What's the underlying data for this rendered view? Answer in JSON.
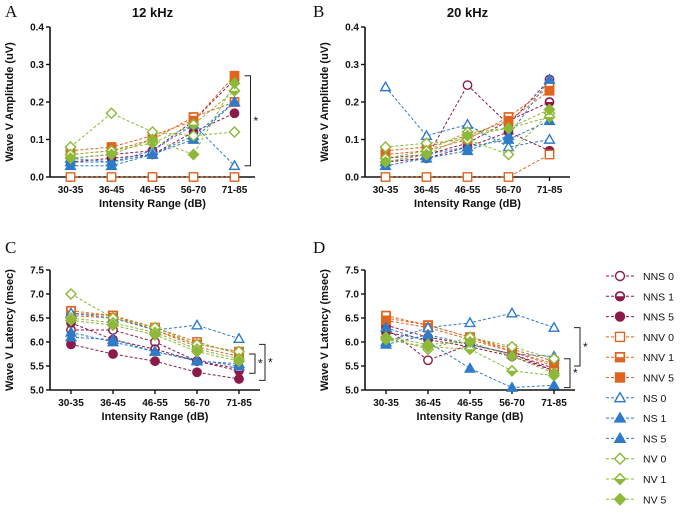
{
  "figure": {
    "x_categories": [
      "30-35",
      "36-45",
      "46-55",
      "56-70",
      "71-85"
    ],
    "x_axis_label": "Intensity Range (dB)",
    "amplitude_axis_label": "Wave V Amplitude (uV)",
    "latency_axis_label": "Wave V Latency (msec)",
    "significance_marker": "*"
  },
  "legend": [
    {
      "label": "NNS 0",
      "color": "#8B1A4A",
      "marker": "circle",
      "fill": "open"
    },
    {
      "label": "NNS 1",
      "color": "#8B1A4A",
      "marker": "circle",
      "fill": "half"
    },
    {
      "label": "NNS 5",
      "color": "#8B1A4A",
      "marker": "circle",
      "fill": "filled"
    },
    {
      "label": "NNV 0",
      "color": "#E0651E",
      "marker": "square",
      "fill": "open"
    },
    {
      "label": "NNV 1",
      "color": "#E0651E",
      "marker": "square",
      "fill": "half"
    },
    {
      "label": "NNV 5",
      "color": "#E0651E",
      "marker": "square",
      "fill": "filled"
    },
    {
      "label": "NS 0",
      "color": "#2F7BC8",
      "marker": "triangle",
      "fill": "open"
    },
    {
      "label": "NS 1",
      "color": "#2F7BC8",
      "marker": "triangle",
      "fill": "half"
    },
    {
      "label": "NS 5",
      "color": "#2F7BC8",
      "marker": "triangle",
      "fill": "filled"
    },
    {
      "label": "NV 0",
      "color": "#8DB838",
      "marker": "diamond",
      "fill": "open"
    },
    {
      "label": "NV 1",
      "color": "#8DB838",
      "marker": "diamond",
      "fill": "half"
    },
    {
      "label": "NV 5",
      "color": "#8DB838",
      "marker": "diamond",
      "fill": "filled"
    }
  ],
  "chart_data": [
    {
      "panel": "A",
      "title": "12 kHz",
      "type": "line",
      "categories": [
        "30-35",
        "36-45",
        "46-55",
        "56-70",
        "71-85"
      ],
      "xlabel": "Intensity Range (dB)",
      "ylabel": "Wave V Amplitude (uV)",
      "ylim": [
        0,
        0.4
      ],
      "yticks": [
        "0.0",
        "0.1",
        "0.2",
        "0.3",
        "0.4"
      ],
      "ytick_values": [
        0,
        0.1,
        0.2,
        0.3,
        0.4
      ],
      "series": [
        {
          "name": "NNS 0",
          "values": [
            0.0,
            0.0,
            0.0,
            0.0,
            0.0
          ]
        },
        {
          "name": "NNS 1",
          "values": [
            0.05,
            0.06,
            0.07,
            0.15,
            0.26
          ]
        },
        {
          "name": "NNS 5",
          "values": [
            0.04,
            0.05,
            0.06,
            0.12,
            0.17
          ]
        },
        {
          "name": "NNV 0",
          "values": [
            0.0,
            0.0,
            0.0,
            0.0,
            0.0
          ]
        },
        {
          "name": "NNV 1",
          "values": [
            0.06,
            0.07,
            0.1,
            0.16,
            0.2
          ]
        },
        {
          "name": "NNV 5",
          "values": [
            0.07,
            0.08,
            0.11,
            0.15,
            0.27
          ]
        },
        {
          "name": "NS 0",
          "values": [
            0.05,
            0.04,
            0.07,
            0.14,
            0.03
          ]
        },
        {
          "name": "NS 1",
          "values": [
            0.04,
            0.04,
            0.06,
            0.11,
            0.2
          ]
        },
        {
          "name": "NS 5",
          "values": [
            0.03,
            0.03,
            0.06,
            0.1,
            0.2
          ]
        },
        {
          "name": "NV 0",
          "values": [
            0.08,
            0.17,
            0.12,
            0.11,
            0.12
          ]
        },
        {
          "name": "NV 1",
          "values": [
            0.06,
            0.07,
            0.09,
            0.14,
            0.23
          ]
        },
        {
          "name": "NV 5",
          "values": [
            0.05,
            0.06,
            0.1,
            0.06,
            0.25
          ]
        }
      ],
      "annotations": [
        {
          "text": "*",
          "from_category": "71-85",
          "y_range": [
            0.03,
            0.27
          ]
        }
      ]
    },
    {
      "panel": "B",
      "title": "20 kHz",
      "type": "line",
      "categories": [
        "30-35",
        "36-45",
        "46-55",
        "56-70",
        "71-85"
      ],
      "xlabel": "Intensity Range (dB)",
      "ylabel": "Wave V Amplitude (uV)",
      "ylim": [
        0,
        0.4
      ],
      "yticks": [
        "0.0",
        "0.1",
        "0.2",
        "0.3",
        "0.4"
      ],
      "ytick_values": [
        0,
        0.1,
        0.2,
        0.3,
        0.4
      ],
      "series": [
        {
          "name": "NNS 0",
          "values": [
            0.04,
            0.05,
            0.245,
            0.14,
            0.26
          ]
        },
        {
          "name": "NNS 1",
          "values": [
            0.05,
            0.06,
            0.09,
            0.15,
            0.2
          ]
        },
        {
          "name": "NNS 5",
          "values": [
            0.04,
            0.05,
            0.08,
            0.12,
            0.07
          ]
        },
        {
          "name": "NNV 0",
          "values": [
            0.0,
            0.0,
            0.0,
            0.0,
            0.06
          ]
        },
        {
          "name": "NNV 1",
          "values": [
            0.06,
            0.07,
            0.1,
            0.16,
            0.24
          ]
        },
        {
          "name": "NNV 5",
          "values": [
            0.07,
            0.08,
            0.11,
            0.15,
            0.23
          ]
        },
        {
          "name": "NS 0",
          "values": [
            0.24,
            0.11,
            0.14,
            0.08,
            0.1
          ]
        },
        {
          "name": "NS 1",
          "values": [
            0.04,
            0.06,
            0.08,
            0.1,
            0.15
          ]
        },
        {
          "name": "NS 5",
          "values": [
            0.03,
            0.05,
            0.07,
            0.11,
            0.26
          ]
        },
        {
          "name": "NV 0",
          "values": [
            0.08,
            0.09,
            0.1,
            0.06,
            0.17
          ]
        },
        {
          "name": "NV 1",
          "values": [
            0.05,
            0.07,
            0.12,
            0.13,
            0.16
          ]
        },
        {
          "name": "NV 5",
          "values": [
            0.04,
            0.06,
            0.11,
            0.13,
            0.18
          ]
        }
      ],
      "annotations": []
    },
    {
      "panel": "C",
      "title": "",
      "type": "line",
      "categories": [
        "30-35",
        "36-45",
        "46-55",
        "56-70",
        "71-85"
      ],
      "xlabel": "Intensity Range (dB)",
      "ylabel": "Wave V Latency (msec)",
      "ylim": [
        5.0,
        7.5
      ],
      "yticks": [
        "5.0",
        "5.5",
        "6.0",
        "6.5",
        "7.0",
        "7.5"
      ],
      "ytick_values": [
        5.0,
        5.5,
        6.0,
        6.5,
        7.0,
        7.5
      ],
      "series": [
        {
          "name": "NNS 0",
          "values": [
            6.25,
            6.25,
            6.0,
            5.6,
            5.45
          ]
        },
        {
          "name": "NNS 1",
          "values": [
            6.4,
            6.05,
            5.85,
            5.6,
            5.4
          ]
        },
        {
          "name": "NNS 5",
          "values": [
            5.95,
            5.75,
            5.6,
            5.37,
            5.23
          ]
        },
        {
          "name": "NNV 0",
          "values": [
            6.6,
            6.55,
            6.3,
            6.0,
            5.75
          ]
        },
        {
          "name": "NNV 1",
          "values": [
            6.65,
            6.55,
            6.25,
            5.95,
            5.8
          ]
        },
        {
          "name": "NNV 5",
          "values": [
            6.55,
            6.5,
            6.25,
            5.9,
            5.7
          ]
        },
        {
          "name": "NS 0",
          "values": [
            6.6,
            6.5,
            6.25,
            6.35,
            6.07
          ]
        },
        {
          "name": "NS 1",
          "values": [
            6.2,
            6.0,
            5.8,
            5.62,
            5.5
          ]
        },
        {
          "name": "NS 5",
          "values": [
            6.1,
            6.05,
            5.8,
            5.6,
            5.55
          ]
        },
        {
          "name": "NV 0",
          "values": [
            7.0,
            6.5,
            6.3,
            5.95,
            5.8
          ]
        },
        {
          "name": "NV 1",
          "values": [
            6.5,
            6.4,
            6.2,
            5.85,
            5.65
          ]
        },
        {
          "name": "NV 5",
          "values": [
            6.45,
            6.35,
            6.15,
            5.8,
            5.6
          ]
        }
      ],
      "annotations": [
        {
          "text": "*",
          "from_category": "71-85",
          "y_range": [
            5.35,
            5.75
          ]
        },
        {
          "text": "*",
          "from_category": "71-85",
          "y_range": [
            5.2,
            5.95
          ]
        }
      ]
    },
    {
      "panel": "D",
      "title": "",
      "type": "line",
      "categories": [
        "30-35",
        "36-45",
        "46-55",
        "56-70",
        "71-85"
      ],
      "xlabel": "Intensity Range (dB)",
      "ylabel": "Wave V Latency (msec)",
      "ylim": [
        5.0,
        7.5
      ],
      "yticks": [
        "5.0",
        "5.5",
        "6.0",
        "6.5",
        "7.0",
        "7.5"
      ],
      "ytick_values": [
        5.0,
        5.5,
        6.0,
        6.5,
        7.0,
        7.5
      ],
      "series": [
        {
          "name": "NNS 0",
          "values": [
            6.3,
            5.62,
            5.95,
            5.75,
            5.4
          ]
        },
        {
          "name": "NNS 1",
          "values": [
            6.35,
            6.1,
            5.95,
            5.75,
            5.45
          ]
        },
        {
          "name": "NNS 5",
          "values": [
            6.2,
            6.05,
            5.9,
            5.7,
            5.4
          ]
        },
        {
          "name": "NNV 0",
          "values": [
            6.5,
            6.35,
            6.1,
            5.8,
            5.5
          ]
        },
        {
          "name": "NNV 1",
          "values": [
            6.55,
            6.35,
            6.1,
            5.85,
            5.6
          ]
        },
        {
          "name": "NNV 5",
          "values": [
            6.45,
            6.3,
            6.05,
            5.8,
            5.55
          ]
        },
        {
          "name": "NS 0",
          "values": [
            6.0,
            6.3,
            6.4,
            6.6,
            6.3
          ]
        },
        {
          "name": "NS 1",
          "values": [
            6.3,
            6.0,
            5.45,
            5.05,
            5.1
          ]
        },
        {
          "name": "NS 5",
          "values": [
            5.95,
            6.15,
            5.95,
            5.75,
            5.7
          ]
        },
        {
          "name": "NV 0",
          "values": [
            6.1,
            5.85,
            6.1,
            5.9,
            5.65
          ]
        },
        {
          "name": "NV 1",
          "values": [
            6.05,
            5.9,
            5.85,
            5.4,
            5.3
          ]
        },
        {
          "name": "NV 5",
          "values": [
            6.1,
            5.95,
            6.0,
            5.7,
            5.35
          ]
        }
      ],
      "annotations": [
        {
          "text": "*",
          "from_category": "71-85",
          "y_range": [
            5.05,
            5.65
          ]
        },
        {
          "text": "*",
          "from_category": "71-85",
          "y_range": [
            5.5,
            6.3
          ]
        }
      ]
    }
  ]
}
